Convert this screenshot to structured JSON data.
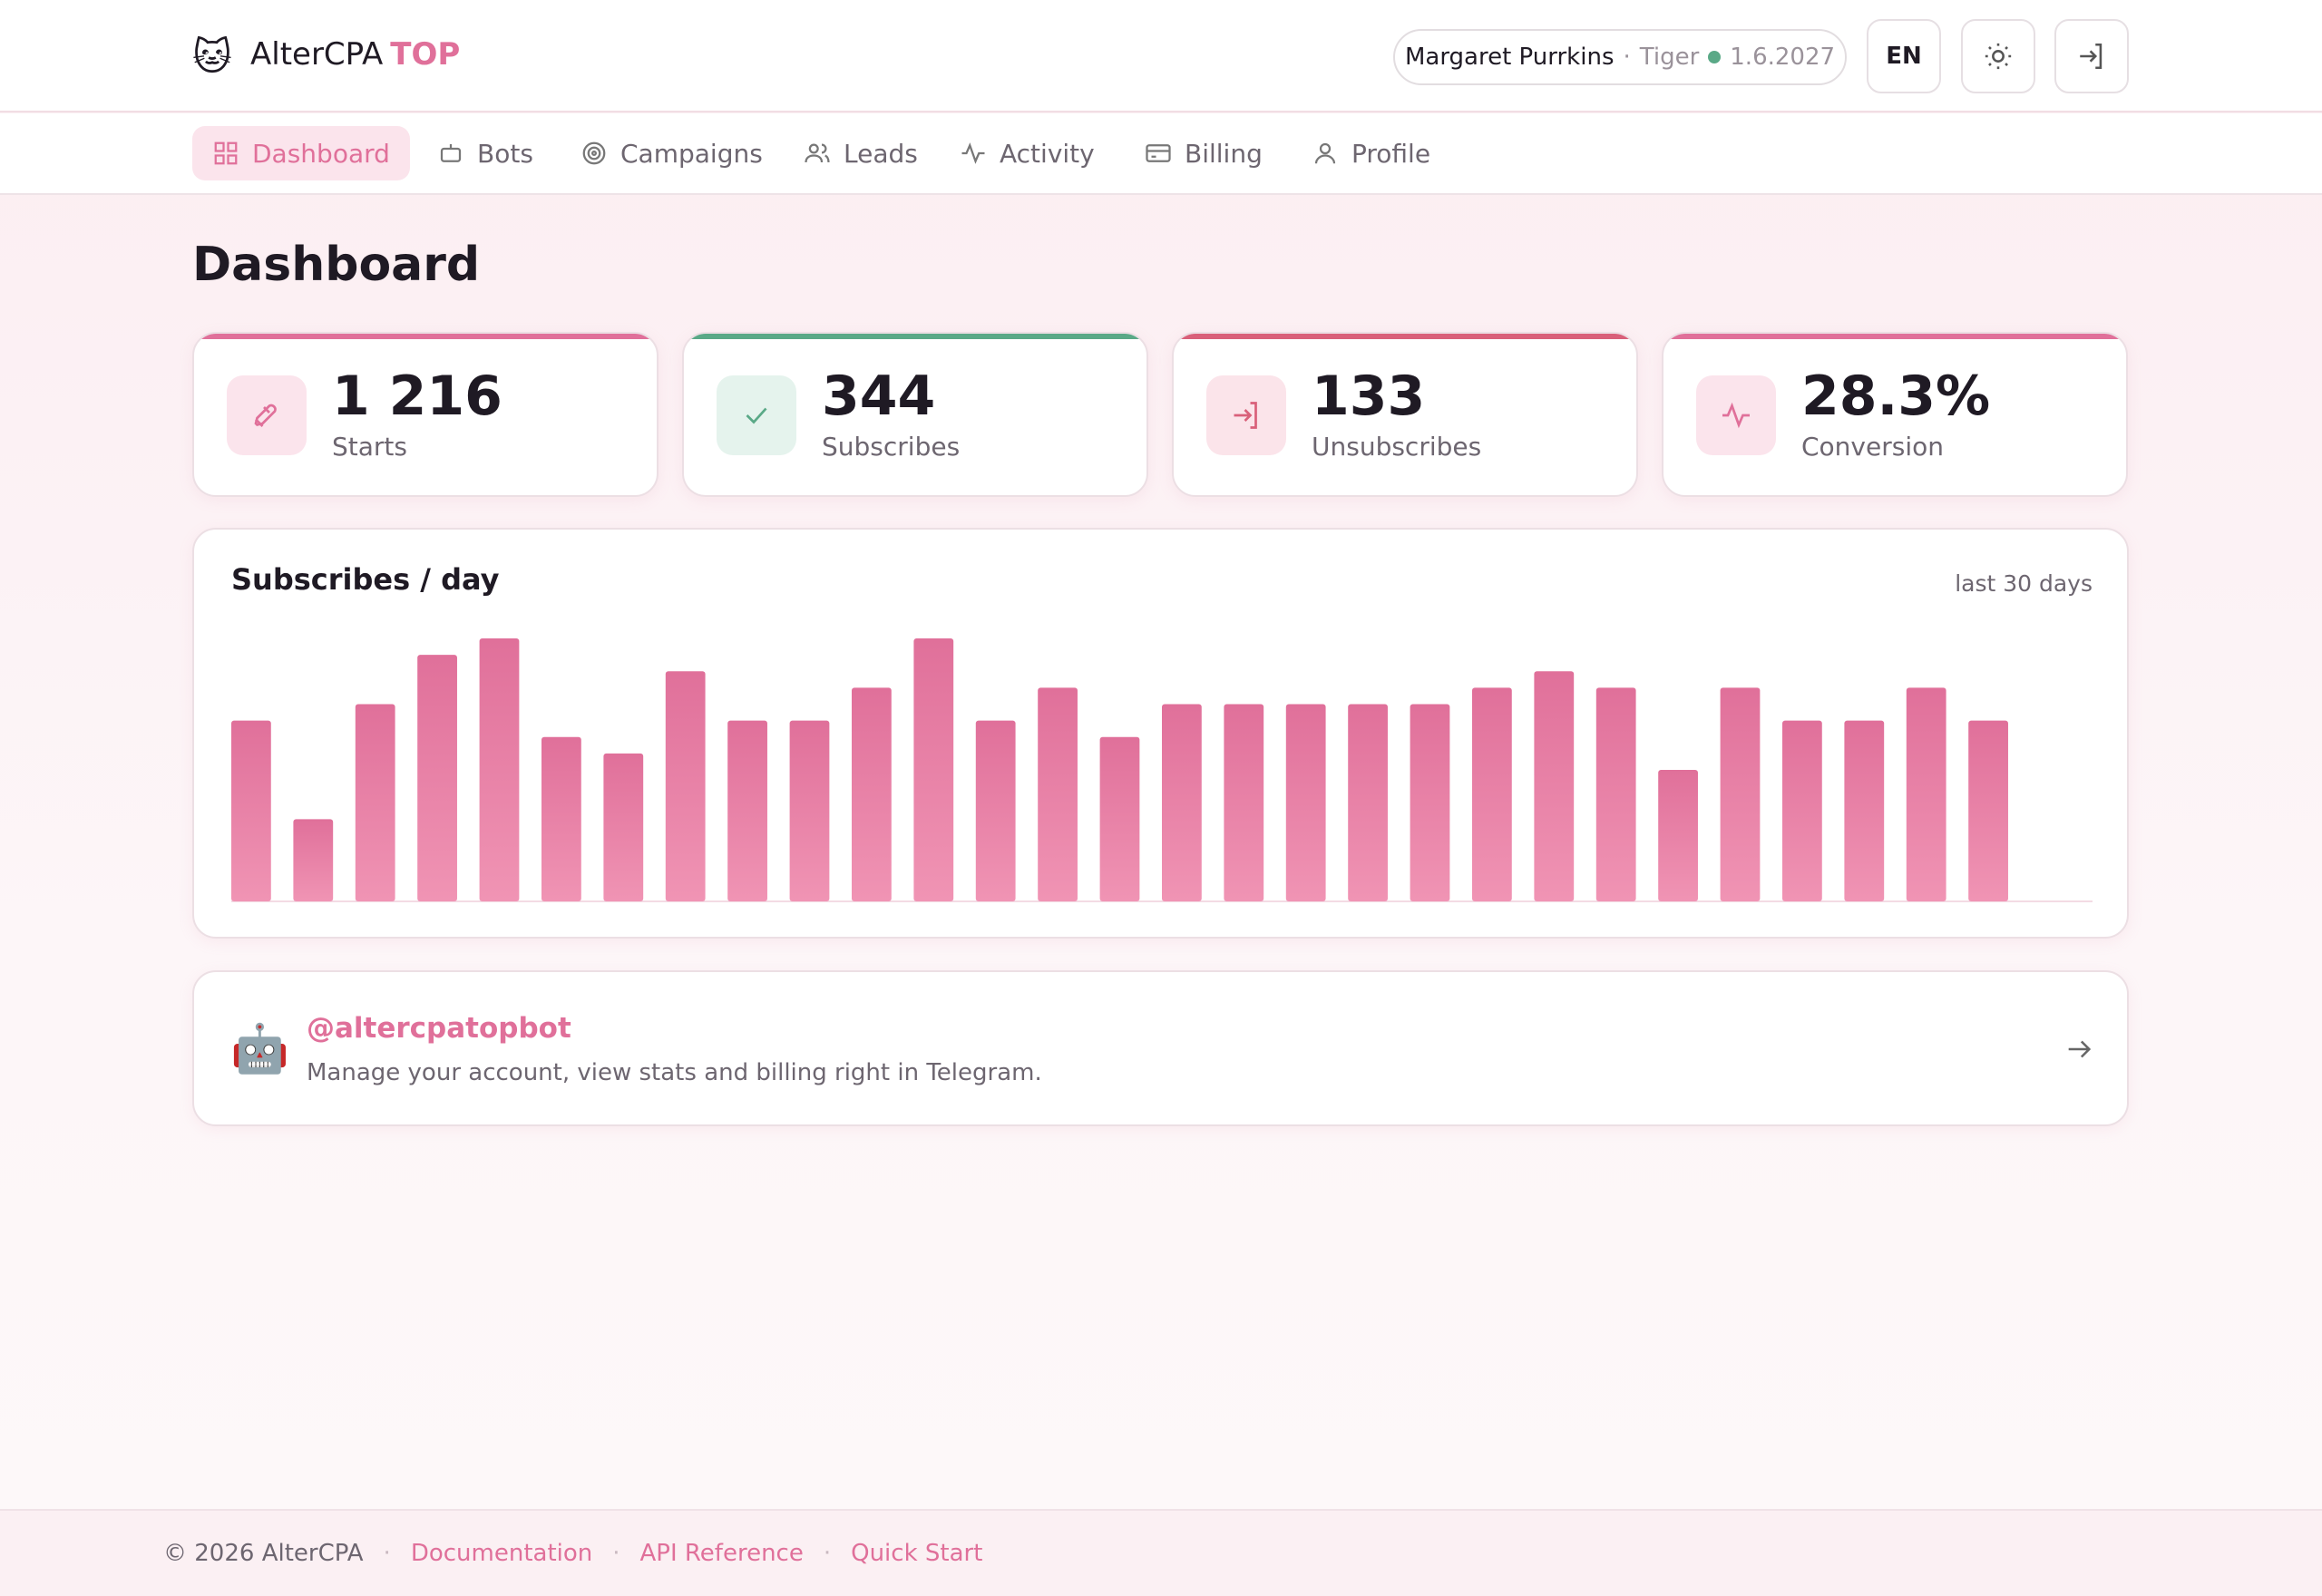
{
  "header": {
    "logo": "🐱",
    "brand": "AlterCPA",
    "brand_accent": "TOP",
    "user_name": "Margaret Purrkins",
    "separator": "·",
    "tier": "Tiger",
    "expiry": "1.6.2027",
    "language": "EN"
  },
  "nav": [
    "Dashboard",
    "Bots",
    "Campaigns",
    "Leads",
    "Activity",
    "Billing",
    "Profile"
  ],
  "page_title": "Dashboard",
  "stats": [
    {
      "value": "1 216",
      "label": "Starts"
    },
    {
      "value": "344",
      "label": "Subscribes"
    },
    {
      "value": "133",
      "label": "Unsubscribes"
    },
    {
      "value": "28.3%",
      "label": "Conversion"
    }
  ],
  "chart_data": {
    "type": "bar",
    "title": "Subscribes / day",
    "subtitle": "last 30 days",
    "color": "#e0709a",
    "values": [
      11,
      5,
      12,
      15,
      16,
      10,
      9,
      14,
      11,
      11,
      13,
      16,
      11,
      13,
      10,
      12,
      12,
      12,
      12,
      12,
      13,
      14,
      13,
      8,
      13,
      11,
      11,
      13,
      11,
      0
    ]
  },
  "bot_card": {
    "icon": "🤖",
    "handle": "@altercpatopbot",
    "description": "Manage your account, view stats and billing right in Telegram."
  },
  "footer": {
    "copyright": "© 2026 AlterCPA",
    "separator": "·",
    "links": [
      "Documentation",
      "API Reference",
      "Quick Start"
    ]
  }
}
